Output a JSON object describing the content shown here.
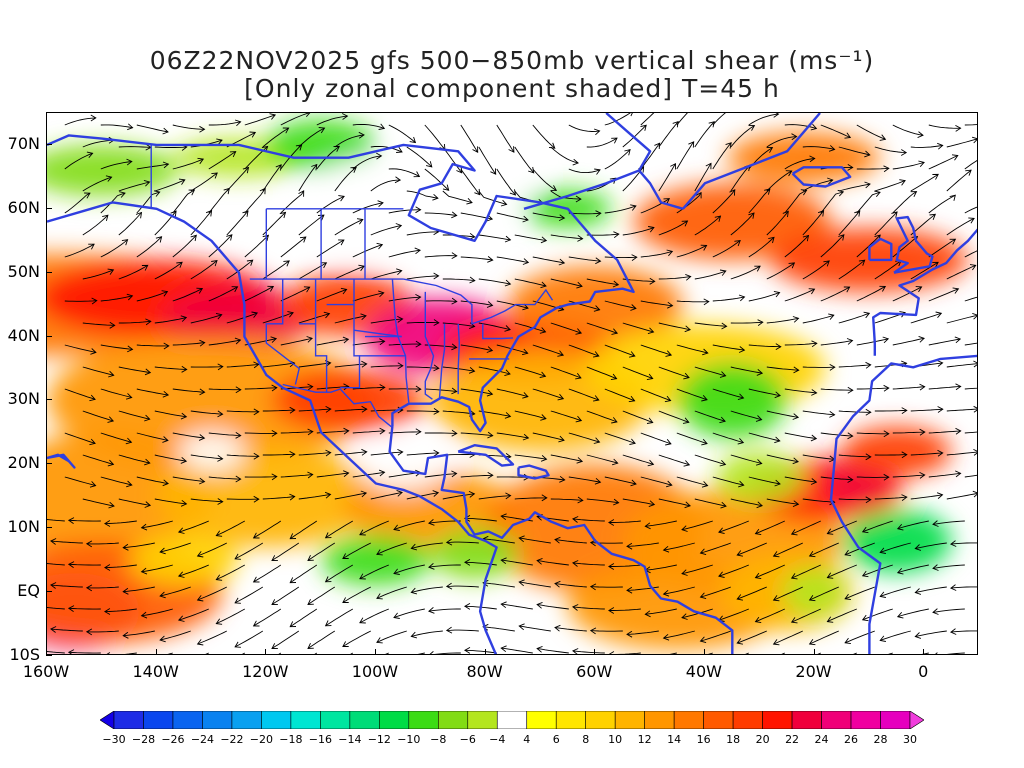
{
  "title": {
    "line1": "06Z22NOV2025 gfs 500−850mb vertical shear (ms⁻¹)",
    "line2": "[Only zonal component shaded] T=45 h"
  },
  "map": {
    "lat_range": [
      -10,
      75
    ],
    "lon_range": [
      -160,
      10
    ],
    "y_axis": [
      "70N",
      "60N",
      "50N",
      "40N",
      "30N",
      "20N",
      "10N",
      "EQ",
      "10S"
    ],
    "y_values": [
      70,
      60,
      50,
      40,
      30,
      20,
      10,
      0,
      -10
    ],
    "x_axis": [
      "160W",
      "140W",
      "120W",
      "100W",
      "80W",
      "60W",
      "40W",
      "20W",
      "0"
    ],
    "x_values": [
      -160,
      -140,
      -120,
      -100,
      -80,
      -60,
      -40,
      -20,
      0
    ],
    "coast_color": "#2f3fe0",
    "streamline_color": "#000000"
  },
  "colorbar": {
    "labels": [
      "-30",
      "-28",
      "-26",
      "-24",
      "-22",
      "-20",
      "-18",
      "-16",
      "-14",
      "-12",
      "-10",
      "-8",
      "-6",
      "-4",
      "4",
      "6",
      "8",
      "10",
      "12",
      "14",
      "16",
      "18",
      "20",
      "22",
      "24",
      "26",
      "28",
      "30"
    ],
    "colors": [
      "#1e2ce6",
      "#0a46ee",
      "#0a64f0",
      "#0a82f0",
      "#0aa0f0",
      "#00c8f0",
      "#00e6d2",
      "#00e6a0",
      "#00dc78",
      "#00dc46",
      "#3cdc14",
      "#82dc14",
      "#b4e61e",
      "#ffffff",
      "#ffff00",
      "#ffe600",
      "#ffd200",
      "#ffb400",
      "#ff9600",
      "#ff7800",
      "#ff5a00",
      "#ff3c00",
      "#ff1400",
      "#f0003c",
      "#f00078",
      "#f000a0",
      "#e600be"
    ],
    "low_color": "#1400e6",
    "high_color": "#f03cdc"
  }
}
